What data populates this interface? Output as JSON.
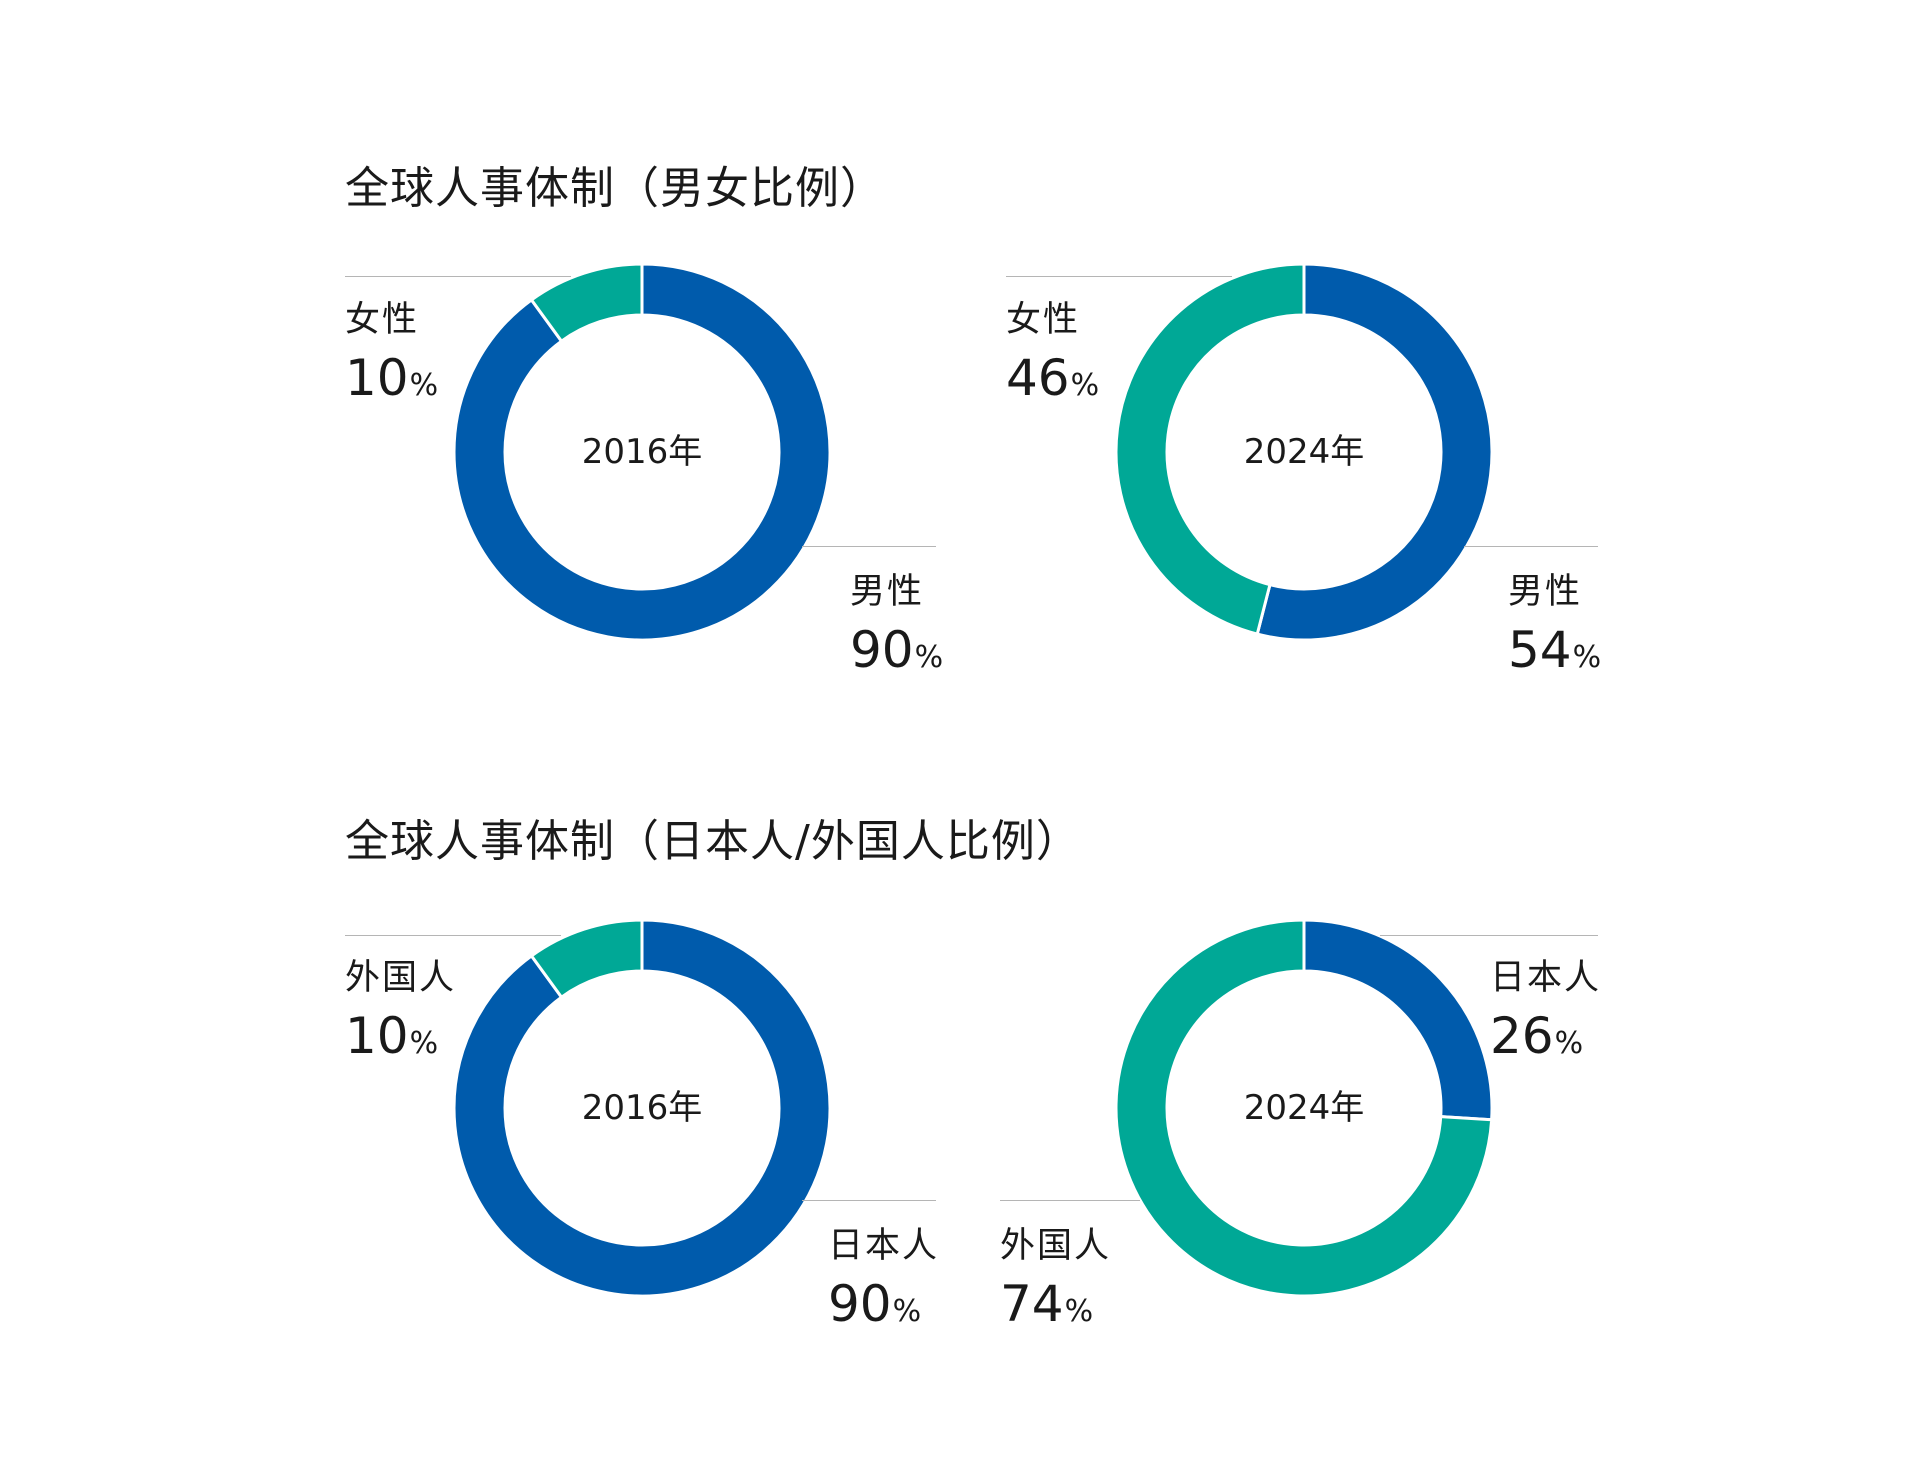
{
  "sections": {
    "gender": {
      "title": "全球人事体制（男女比例）"
    },
    "nationality": {
      "title": "全球人事体制（日本人/外国人比例）"
    }
  },
  "colors": {
    "blue": "#005bac",
    "teal": "#00a896",
    "leader": "#b5b5b5"
  },
  "chart_data": [
    {
      "type": "pie",
      "donut": true,
      "title": "全球人事体制（男女比例）",
      "center_label": "2016年",
      "slices": [
        {
          "label": "男性",
          "value": 90,
          "value_text": "90",
          "unit": "%",
          "color": "#005bac"
        },
        {
          "label": "女性",
          "value": 10,
          "value_text": "10",
          "unit": "%",
          "color": "#00a896"
        }
      ]
    },
    {
      "type": "pie",
      "donut": true,
      "title": "全球人事体制（男女比例）",
      "center_label": "2024年",
      "slices": [
        {
          "label": "男性",
          "value": 54,
          "value_text": "54",
          "unit": "%",
          "color": "#005bac"
        },
        {
          "label": "女性",
          "value": 46,
          "value_text": "46",
          "unit": "%",
          "color": "#00a896"
        }
      ]
    },
    {
      "type": "pie",
      "donut": true,
      "title": "全球人事体制（日本人/外国人比例）",
      "center_label": "2016年",
      "slices": [
        {
          "label": "日本人",
          "value": 90,
          "value_text": "90",
          "unit": "%",
          "color": "#005bac"
        },
        {
          "label": "外国人",
          "value": 10,
          "value_text": "10",
          "unit": "%",
          "color": "#00a896"
        }
      ]
    },
    {
      "type": "pie",
      "donut": true,
      "title": "全球人事体制（日本人/外国人比例）",
      "center_label": "2024年",
      "slices": [
        {
          "label": "日本人",
          "value": 26,
          "value_text": "26",
          "unit": "%",
          "color": "#005bac"
        },
        {
          "label": "外国人",
          "value": 74,
          "value_text": "74",
          "unit": "%",
          "color": "#00a896"
        }
      ]
    }
  ]
}
